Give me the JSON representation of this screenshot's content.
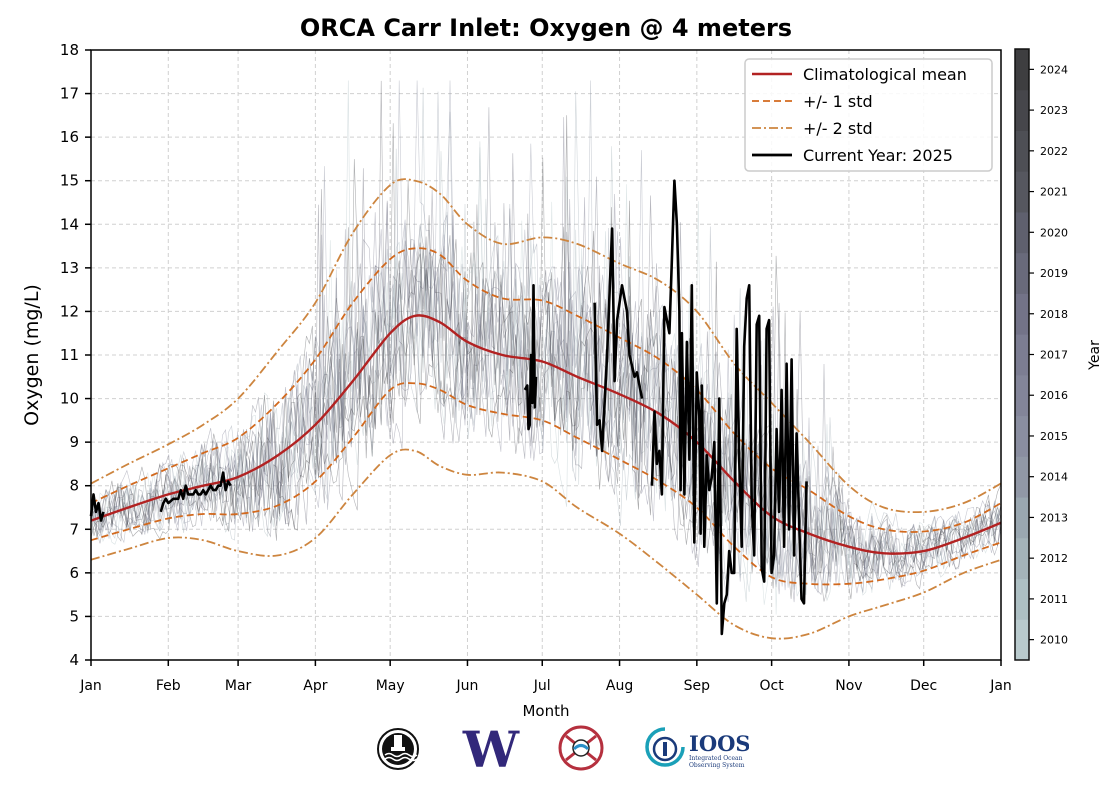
{
  "chart_data": {
    "type": "line",
    "title": "ORCA Carr Inlet: Oxygen @ 4 meters",
    "xlabel": "Month",
    "ylabel": "Oxygen (mg/L)",
    "ylim": [
      4,
      18
    ],
    "xlim_day_of_year": [
      0,
      365
    ],
    "yticks": [
      "4",
      "5",
      "6",
      "7",
      "8",
      "9",
      "10",
      "11",
      "12",
      "13",
      "14",
      "15",
      "16",
      "17",
      "18"
    ],
    "xticks": [
      {
        "label": "Jan",
        "day": 0
      },
      {
        "label": "Feb",
        "day": 31
      },
      {
        "label": "Mar",
        "day": 59
      },
      {
        "label": "Apr",
        "day": 90
      },
      {
        "label": "May",
        "day": 120
      },
      {
        "label": "Jun",
        "day": 151
      },
      {
        "label": "Jul",
        "day": 181
      },
      {
        "label": "Aug",
        "day": 212
      },
      {
        "label": "Sep",
        "day": 243
      },
      {
        "label": "Oct",
        "day": 273
      },
      {
        "label": "Nov",
        "day": 304
      },
      {
        "label": "Dec",
        "day": 334
      },
      {
        "label": "Jan",
        "day": 365
      }
    ],
    "grid": true,
    "legend_position": "top-right",
    "legend": [
      {
        "label": "Climatological mean",
        "style": "solid",
        "color": "#b22222"
      },
      {
        "label": "+/- 1 std",
        "style": "dashed",
        "color": "#d2691e"
      },
      {
        "label": "+/- 2 std",
        "style": "dashdot",
        "color": "#cd853f"
      },
      {
        "label": "Current Year: 2025",
        "style": "solid",
        "color": "#000000"
      }
    ],
    "colorbar": {
      "label": "Year",
      "ticks": [
        "2010",
        "2011",
        "2012",
        "2013",
        "2014",
        "2015",
        "2016",
        "2017",
        "2018",
        "2019",
        "2020",
        "2021",
        "2022",
        "2023",
        "2024"
      ],
      "colors": [
        "#b9cacd",
        "#adbfc3",
        "#a4b3b9",
        "#9aa7b0",
        "#9198a6",
        "#8a8ea0",
        "#838599",
        "#7c7d92",
        "#737388",
        "#696a7b",
        "#5f606e",
        "#56575f",
        "#4e4f55",
        "#46464b",
        "#3e3e40"
      ]
    },
    "series": [
      {
        "name": "Climatological mean",
        "x": [
          0,
          15,
          31,
          45,
          59,
          75,
          90,
          105,
          120,
          130,
          140,
          151,
          165,
          181,
          195,
          212,
          228,
          243,
          258,
          273,
          288,
          304,
          318,
          334,
          350,
          365
        ],
        "y": [
          7.2,
          7.5,
          7.8,
          8.0,
          8.2,
          8.7,
          9.4,
          10.4,
          11.5,
          11.9,
          11.75,
          11.3,
          11.0,
          10.85,
          10.5,
          10.1,
          9.65,
          9.0,
          8.1,
          7.3,
          6.9,
          6.6,
          6.45,
          6.5,
          6.8,
          7.15
        ]
      },
      {
        "name": "+1 std",
        "x": [
          0,
          15,
          31,
          45,
          59,
          75,
          90,
          105,
          120,
          130,
          140,
          151,
          165,
          181,
          195,
          212,
          228,
          243,
          258,
          273,
          288,
          304,
          318,
          334,
          350,
          365
        ],
        "y": [
          7.6,
          8.0,
          8.4,
          8.75,
          9.1,
          9.9,
          10.9,
          12.2,
          13.2,
          13.45,
          13.3,
          12.7,
          12.3,
          12.25,
          11.9,
          11.4,
          10.9,
          10.2,
          9.2,
          8.4,
          7.9,
          7.3,
          7.0,
          6.95,
          7.15,
          7.6
        ]
      },
      {
        "name": "-1 std",
        "x": [
          0,
          15,
          31,
          45,
          59,
          75,
          90,
          105,
          120,
          130,
          140,
          151,
          165,
          181,
          195,
          212,
          228,
          243,
          258,
          273,
          288,
          304,
          318,
          334,
          350,
          365
        ],
        "y": [
          6.75,
          7.0,
          7.25,
          7.35,
          7.35,
          7.55,
          8.1,
          9.1,
          10.2,
          10.35,
          10.2,
          9.85,
          9.65,
          9.5,
          9.1,
          8.6,
          8.1,
          7.5,
          6.6,
          5.9,
          5.75,
          5.75,
          5.85,
          6.05,
          6.4,
          6.7
        ]
      },
      {
        "name": "+2 std",
        "x": [
          0,
          15,
          31,
          45,
          59,
          75,
          90,
          105,
          120,
          130,
          140,
          151,
          165,
          181,
          195,
          212,
          228,
          243,
          258,
          273,
          288,
          304,
          318,
          334,
          350,
          365
        ],
        "y": [
          8.05,
          8.5,
          8.95,
          9.4,
          10.0,
          11.1,
          12.2,
          13.8,
          14.9,
          15.0,
          14.7,
          14.0,
          13.55,
          13.7,
          13.55,
          13.1,
          12.7,
          12.0,
          10.8,
          9.9,
          9.0,
          8.0,
          7.5,
          7.4,
          7.6,
          8.05
        ]
      },
      {
        "name": "-2 std",
        "x": [
          0,
          15,
          31,
          45,
          59,
          75,
          90,
          105,
          120,
          130,
          140,
          151,
          165,
          181,
          195,
          212,
          228,
          243,
          258,
          273,
          288,
          304,
          318,
          334,
          350,
          365
        ],
        "y": [
          6.3,
          6.55,
          6.8,
          6.75,
          6.5,
          6.4,
          6.8,
          7.8,
          8.7,
          8.8,
          8.45,
          8.25,
          8.3,
          8.1,
          7.5,
          6.9,
          6.2,
          5.5,
          4.8,
          4.5,
          4.6,
          5.0,
          5.25,
          5.55,
          6.0,
          6.3
        ]
      },
      {
        "name": "Current Year: 2025",
        "segments": [
          {
            "x": [
              0,
              1,
              2,
              3,
              4,
              5
            ],
            "y": [
              7.3,
              7.8,
              7.4,
              7.6,
              7.2,
              7.4
            ]
          },
          {
            "x": [
              28,
              29,
              30,
              31,
              33,
              35,
              36,
              37,
              38,
              39,
              40,
              41,
              42,
              43,
              44,
              45,
              46,
              47,
              48,
              49,
              50,
              51,
              52,
              53,
              54,
              55,
              56
            ],
            "y": [
              7.4,
              7.6,
              7.7,
              7.6,
              7.7,
              7.7,
              7.9,
              7.7,
              8.0,
              7.8,
              7.8,
              7.8,
              7.9,
              7.8,
              7.8,
              7.9,
              7.8,
              7.9,
              8.0,
              7.9,
              7.9,
              8.0,
              8.0,
              8.3,
              7.9,
              8.1,
              8.0
            ]
          },
          {
            "x": [
              174,
              175,
              175.5,
              176,
              176.5,
              177,
              177.5,
              178,
              178.5
            ],
            "y": [
              10.2,
              10.3,
              9.3,
              9.4,
              11.0,
              9.9,
              12.6,
              9.8,
              10.5
            ]
          },
          {
            "x": [
              202,
              203,
              204,
              205,
              207,
              209,
              210,
              211,
              213,
              215,
              216,
              218,
              219,
              220,
              221
            ],
            "y": [
              12.2,
              9.4,
              9.5,
              8.8,
              11.0,
              13.9,
              10.4,
              11.8,
              12.6,
              12.0,
              11.0,
              10.5,
              10.6,
              10.3,
              10.0
            ]
          },
          {
            "x": [
              225,
              226,
              227,
              228,
              229,
              230,
              231,
              232,
              233,
              234,
              235,
              236,
              236.5,
              237,
              238,
              239,
              240,
              241,
              242,
              243,
              244,
              244.5,
              245,
              246,
              247,
              248,
              249,
              250,
              251,
              252,
              253,
              254,
              255,
              256,
              257,
              258,
              259,
              260,
              261,
              262,
              263,
              264,
              265,
              266,
              267,
              268,
              269,
              270,
              271,
              272,
              273,
              274,
              275,
              276,
              277,
              278,
              279,
              280,
              281,
              282,
              283,
              284,
              285,
              286,
              287
            ],
            "y": [
              8.0,
              9.7,
              8.5,
              8.8,
              7.8,
              12.1,
              11.8,
              11.5,
              13.2,
              15.0,
              14.0,
              12.0,
              7.9,
              11.5,
              7.8,
              11.3,
              8.6,
              12.6,
              6.7,
              10.6,
              9.6,
              6.9,
              10.3,
              6.6,
              8.7,
              7.9,
              8.2,
              9.0,
              5.3,
              10.0,
              4.6,
              5.3,
              5.5,
              6.5,
              6.0,
              6.0,
              11.6,
              8.6,
              6.6,
              11.2,
              12.3,
              12.6,
              7.6,
              6.4,
              11.7,
              11.9,
              6.1,
              5.8,
              11.6,
              11.8,
              6.0,
              6.4,
              9.3,
              7.4,
              10.2,
              6.6,
              10.8,
              7.0,
              10.9,
              6.4,
              9.2,
              7.2,
              5.4,
              5.3,
              8.1
            ]
          }
        ]
      }
    ]
  },
  "logos": [
    {
      "name": "nanoos-buoy-logo"
    },
    {
      "name": "uw-logo",
      "text": "W"
    },
    {
      "name": "tribal-logo"
    },
    {
      "name": "ioos-logo",
      "text": "IOOS",
      "subtext1": "Integrated Ocean",
      "subtext2": "Observing System"
    }
  ]
}
